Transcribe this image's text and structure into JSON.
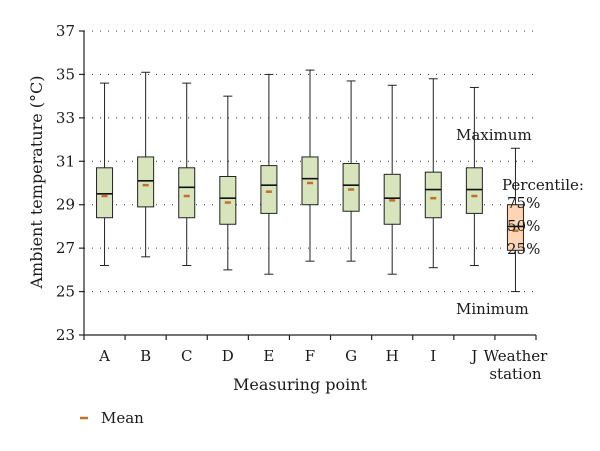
{
  "chart_data": {
    "type": "box",
    "xlabel": "Measuring point",
    "ylabel": "Ambient temperature (°C)",
    "ylim": [
      23,
      37
    ],
    "yticks": [
      23,
      25,
      27,
      29,
      31,
      33,
      35,
      37
    ],
    "grid": "horizontal-dotted",
    "colors": {
      "measuring_box": "#d8e4bc",
      "station_box": "#fcd5b4",
      "mean_marker": "#c0702a"
    },
    "categories": [
      {
        "label": "A",
        "min": 26.2,
        "q1": 28.4,
        "median": 29.5,
        "q3": 30.7,
        "max": 34.6,
        "mean": 29.4
      },
      {
        "label": "B",
        "min": 26.6,
        "q1": 28.9,
        "median": 30.1,
        "q3": 31.2,
        "max": 35.1,
        "mean": 29.9
      },
      {
        "label": "C",
        "min": 26.2,
        "q1": 28.4,
        "median": 29.8,
        "q3": 30.7,
        "max": 34.6,
        "mean": 29.4
      },
      {
        "label": "D",
        "min": 26.0,
        "q1": 28.1,
        "median": 29.3,
        "q3": 30.3,
        "max": 34.0,
        "mean": 29.1
      },
      {
        "label": "E",
        "min": 25.8,
        "q1": 28.6,
        "median": 29.9,
        "q3": 30.8,
        "max": 35.0,
        "mean": 29.6
      },
      {
        "label": "F",
        "min": 26.4,
        "q1": 29.0,
        "median": 30.2,
        "q3": 31.2,
        "max": 35.2,
        "mean": 30.0
      },
      {
        "label": "G",
        "min": 26.4,
        "q1": 28.7,
        "median": 29.9,
        "q3": 30.9,
        "max": 34.7,
        "mean": 29.7
      },
      {
        "label": "H",
        "min": 25.8,
        "q1": 28.1,
        "median": 29.3,
        "q3": 30.4,
        "max": 34.5,
        "mean": 29.2
      },
      {
        "label": "I",
        "min": 26.1,
        "q1": 28.4,
        "median": 29.7,
        "q3": 30.5,
        "max": 34.8,
        "mean": 29.3
      },
      {
        "label": "J",
        "min": 26.2,
        "q1": 28.6,
        "median": 29.7,
        "q3": 30.7,
        "max": 34.4,
        "mean": 29.4
      },
      {
        "label": [
          "Weather",
          "station"
        ],
        "min": 25.0,
        "q1": 26.9,
        "median": 28.0,
        "q3": 29.0,
        "max": 31.6,
        "mean": 27.8
      }
    ],
    "annotations": {
      "maximum": "Maximum",
      "percentile": "Percentile:",
      "p75": "75%",
      "p50": "50%",
      "p25": "25%",
      "minimum": "Minimum"
    },
    "legend": {
      "mean_label": "Mean"
    }
  }
}
